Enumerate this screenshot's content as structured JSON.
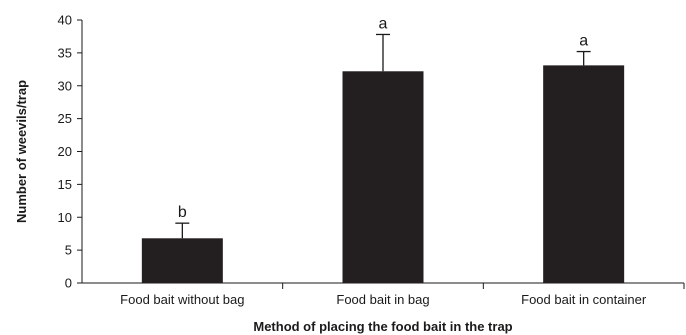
{
  "chart_data": {
    "type": "bar",
    "title": "",
    "xlabel": "Method of placing the food bait in the trap",
    "ylabel": "Number of weevils/trap",
    "ylim": [
      0,
      40
    ],
    "yticks": [
      0,
      5,
      10,
      15,
      20,
      25,
      30,
      35,
      40
    ],
    "categories": [
      "Food bait without bag",
      "Food bait in bag",
      "Food bait in container"
    ],
    "values": [
      6.8,
      32.2,
      33.1
    ],
    "error_upper": [
      2.3,
      5.6,
      2.1
    ],
    "significance_letters": [
      "b",
      "a",
      "a"
    ],
    "bar_color": "#231f20",
    "grid": false,
    "legend": "none"
  }
}
